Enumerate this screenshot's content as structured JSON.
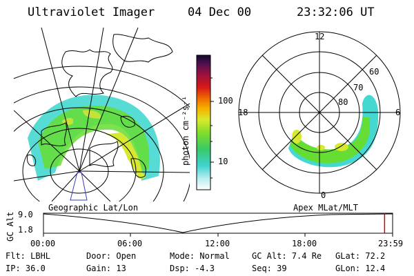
{
  "header": {
    "instrument": "Ultraviolet Imager",
    "date": "04 Dec 00",
    "time": "23:32:06 UT"
  },
  "colorbar": {
    "unit_label": "photon cm⁻²s⁻¹",
    "tick_100": "100",
    "tick_10": "10"
  },
  "geo_panel": {
    "caption": "Geographic Lat/Lon"
  },
  "polar_panel": {
    "caption": "Apex MLat/MLT",
    "mlt_top": "12",
    "mlt_left": "18",
    "mlt_right": "6",
    "mlt_bottom": "0",
    "lat_60": "60",
    "lat_70": "70",
    "lat_80": "80"
  },
  "alt_plot": {
    "ylabel": "GC Alt",
    "y_top": "9.0",
    "y_bottom": "1.8",
    "x_ticks": [
      "00:00",
      "06:00",
      "12:00",
      "18:00",
      "23:59"
    ],
    "current_fraction": 0.977
  },
  "status": {
    "filter": "Flt: LBHL",
    "door": "Door: Open",
    "mode": "Mode: Normal",
    "gc_alt": "GC Alt: 7.4 Re",
    "glat": "GLat: 72.2",
    "ip": "IP: 36.0",
    "gain": "Gain: 13",
    "dsp": "Dsp:   -4.3",
    "seq": "Seq: 39",
    "glon": "GLon:  12.4"
  },
  "colors": {
    "accent_line": "#cc0000",
    "aurora_low": "#44d8d0",
    "aurora_mid": "#66dd33",
    "aurora_high": "#d6e830"
  }
}
